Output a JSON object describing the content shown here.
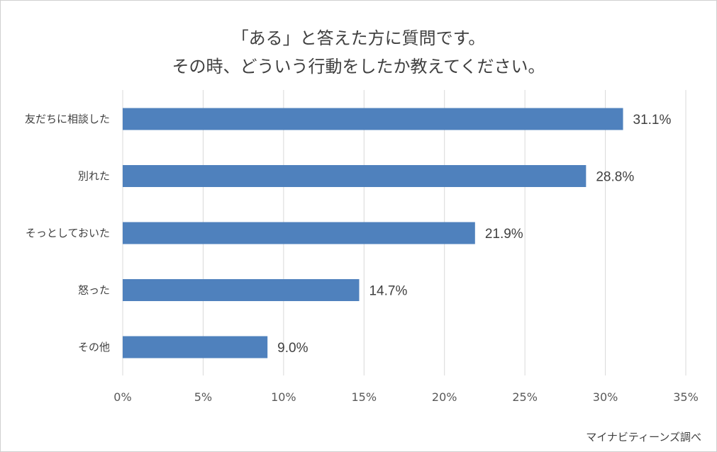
{
  "chart_data": {
    "type": "bar",
    "orientation": "horizontal",
    "title_lines": [
      "「ある」と答えた方に質問です。",
      "その時、どういう行動をしたか教えてください。"
    ],
    "categories": [
      "友だちに相談した",
      "別れた",
      "そっとしておいた",
      "怒った",
      "その他"
    ],
    "values": [
      31.1,
      28.8,
      21.9,
      14.7,
      9.0
    ],
    "data_labels": [
      "31.1%",
      "28.8%",
      "21.9%",
      "14.7%",
      "9.0%"
    ],
    "xlim": [
      0,
      35
    ],
    "xticks": [
      0,
      5,
      10,
      15,
      20,
      25,
      30,
      35
    ],
    "xtick_labels": [
      "0%",
      "5%",
      "10%",
      "15%",
      "20%",
      "25%",
      "30%",
      "35%"
    ],
    "xlabel": "",
    "ylabel": "",
    "grid": "vertical",
    "legend": "none",
    "bar_color": "#4f81bd"
  },
  "source": "マイナビティーンズ調べ"
}
